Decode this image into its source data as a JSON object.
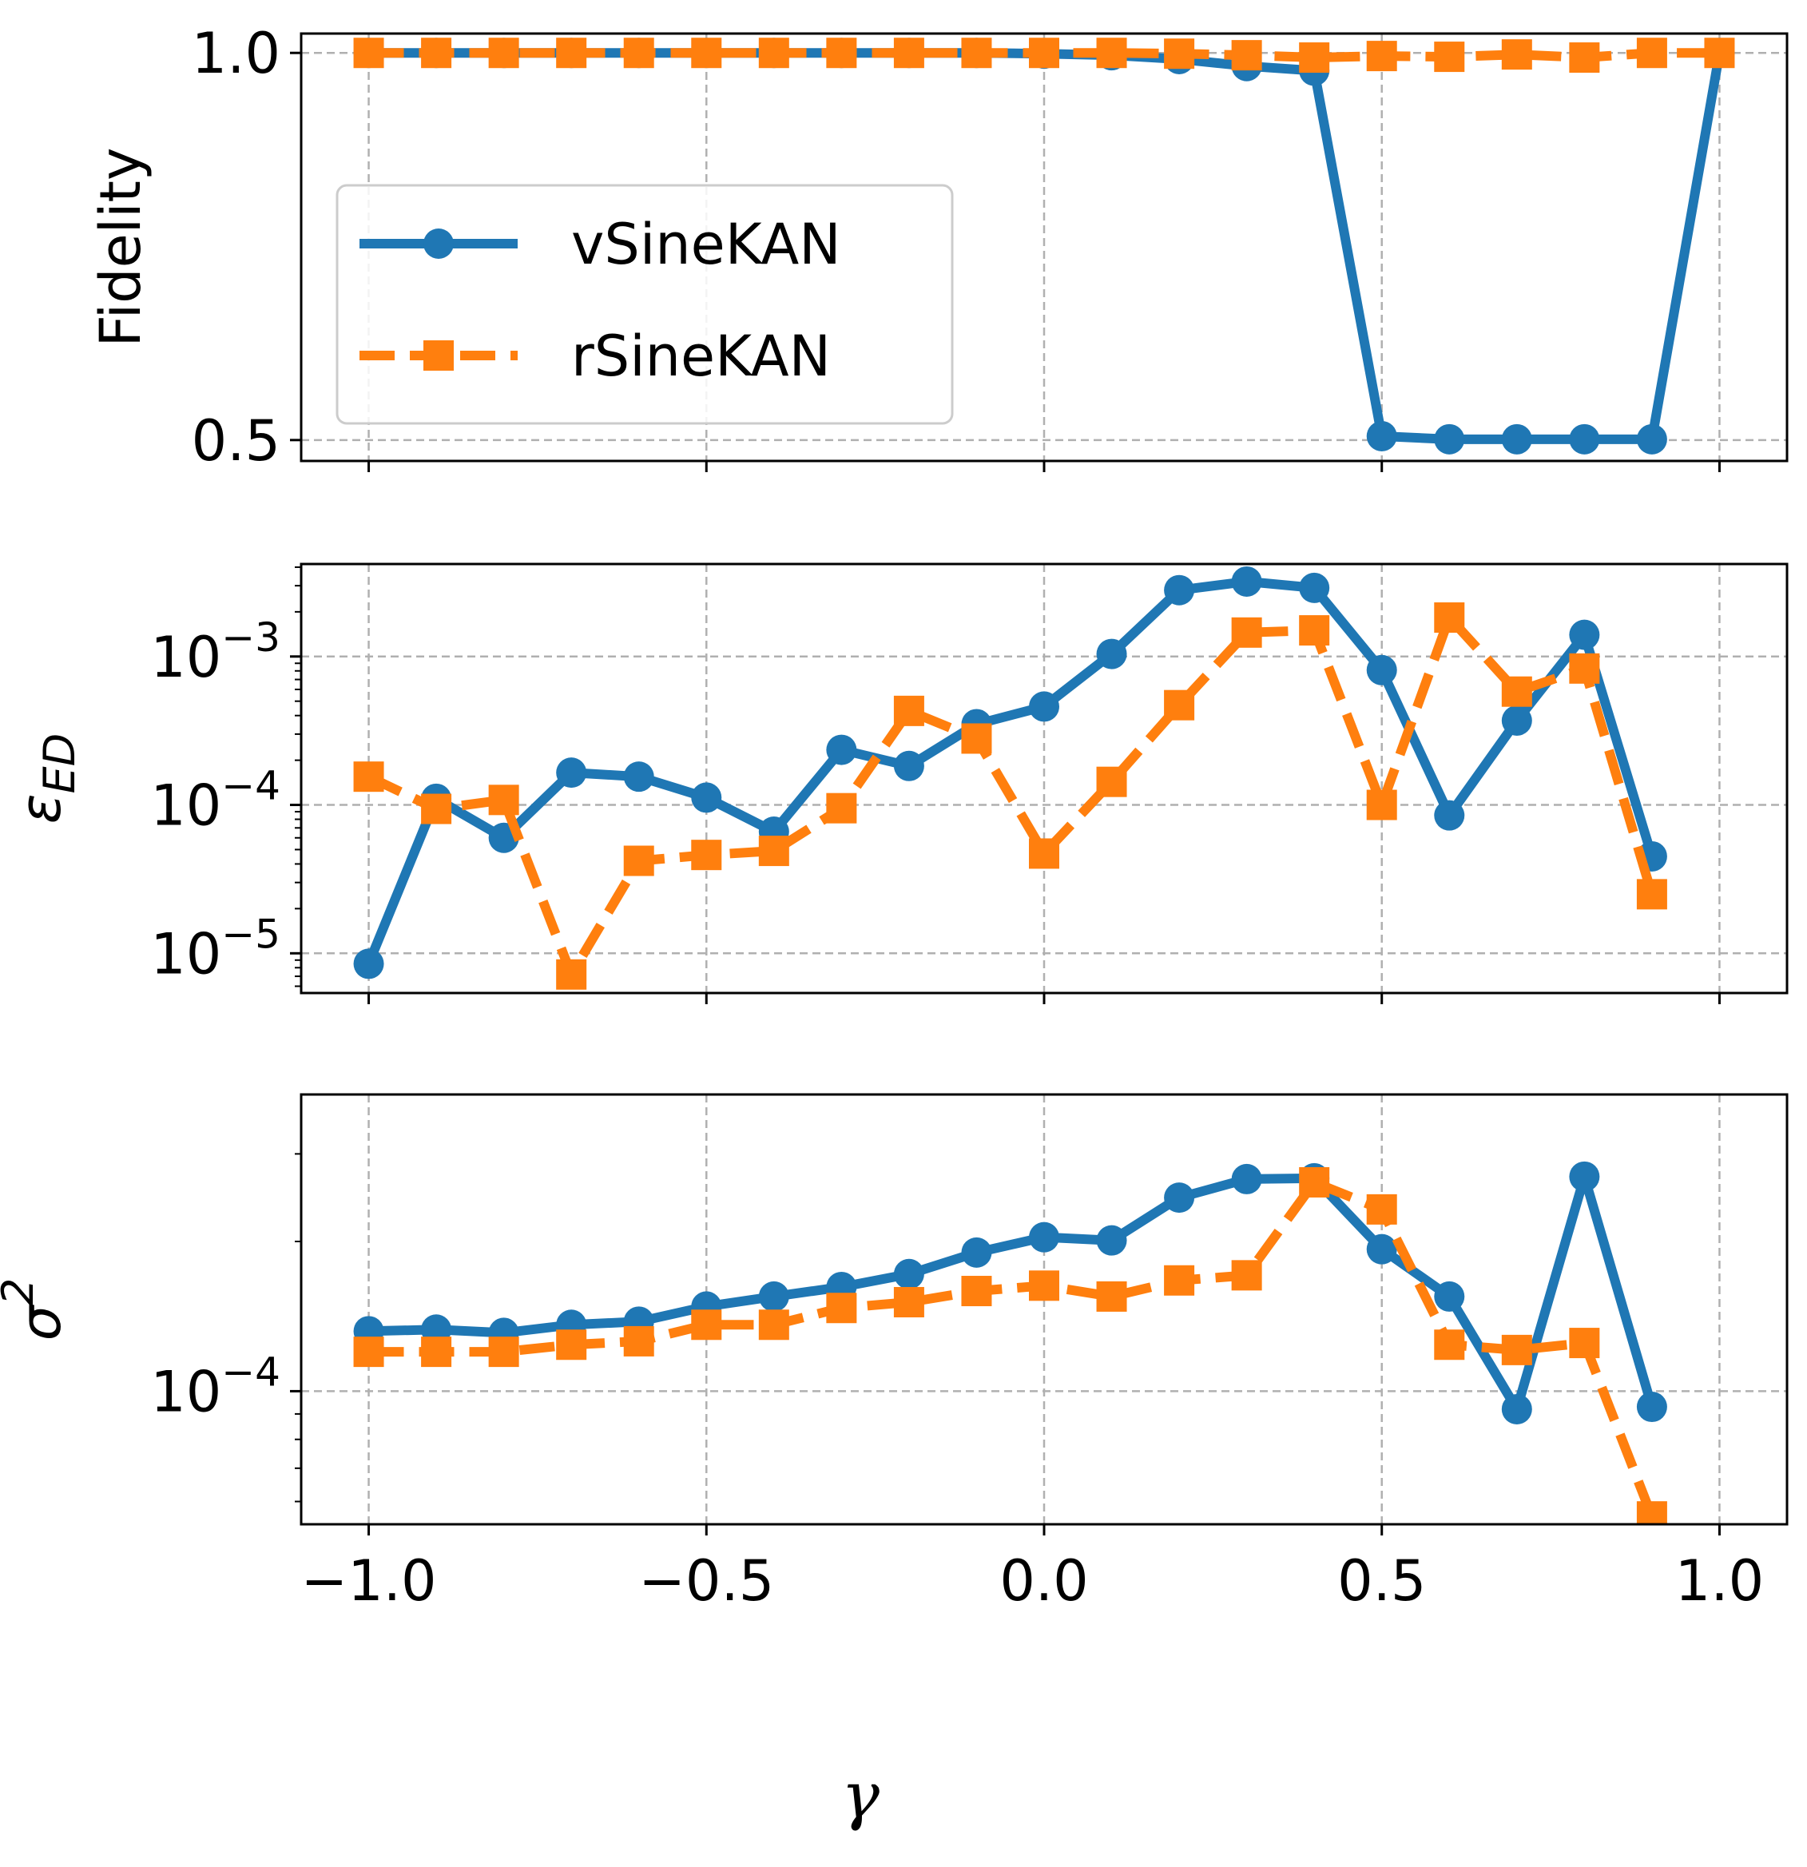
{
  "chart_data": [
    {
      "type": "line",
      "panel": "top",
      "ylabel": "Fidelity",
      "yscale": "linear",
      "ylim": [
        0.473,
        1.025
      ],
      "yticks": [
        {
          "value": 0.5,
          "label": "0.5"
        },
        {
          "value": 1.0,
          "label": "1.0"
        }
      ],
      "grid": true,
      "legend": {
        "position": "center-left",
        "entries": [
          "vSineKAN",
          "rSineKAN"
        ]
      },
      "x": [
        -1.0,
        -0.9,
        -0.8,
        -0.7,
        -0.6,
        -0.5,
        -0.4,
        -0.3,
        -0.2,
        -0.1,
        0.0,
        0.1,
        0.2,
        0.3,
        0.4,
        0.5,
        0.6,
        0.7,
        0.8,
        0.9,
        1.0
      ],
      "series": [
        {
          "name": "vSineKAN",
          "color": "#1f77b4",
          "marker": "circle",
          "linestyle": "solid",
          "values": [
            1.0,
            1.0,
            1.0,
            1.0,
            1.0,
            1.0,
            1.0,
            1.0,
            1.0,
            1.0,
            0.999,
            0.997,
            0.992,
            0.983,
            0.977,
            0.505,
            0.501,
            0.501,
            0.501,
            0.501,
            1.0
          ]
        },
        {
          "name": "rSineKAN",
          "color": "#ff7f0e",
          "marker": "square",
          "linestyle": "dashed",
          "values": [
            1.0,
            1.0,
            1.0,
            1.0,
            1.0,
            1.0,
            1.0,
            1.0,
            1.0,
            1.0,
            1.0,
            1.0,
            0.999,
            0.997,
            0.994,
            0.996,
            0.995,
            0.998,
            0.994,
            1.0,
            1.0
          ]
        }
      ]
    },
    {
      "type": "line",
      "panel": "middle",
      "ylabel": "εED",
      "ylabel_main": "ε",
      "ylabel_sub": "ED",
      "yscale": "log",
      "ylim": [
        5.4e-06,
        0.0042
      ],
      "yticks": [
        {
          "value": 1e-05,
          "base": "10",
          "exp": "−5"
        },
        {
          "value": 0.0001,
          "base": "10",
          "exp": "−4"
        },
        {
          "value": 0.001,
          "base": "10",
          "exp": "−3"
        }
      ],
      "grid": true,
      "x": [
        -1.0,
        -0.9,
        -0.8,
        -0.7,
        -0.6,
        -0.5,
        -0.4,
        -0.3,
        -0.2,
        -0.1,
        0.0,
        0.1,
        0.2,
        0.3,
        0.4,
        0.5,
        0.6,
        0.7,
        0.8,
        0.9
      ],
      "series": [
        {
          "name": "vSineKAN",
          "color": "#1f77b4",
          "marker": "circle",
          "linestyle": "solid",
          "values": [
            8.5e-06,
            0.00011,
            6e-05,
            0.000165,
            0.000155,
            0.000112,
            6.6e-05,
            0.000235,
            0.000183,
            0.00035,
            0.00046,
            0.00104,
            0.0028,
            0.0032,
            0.0029,
            0.00081,
            8.5e-05,
            0.00037,
            0.0014,
            4.5e-05
          ]
        },
        {
          "name": "rSineKAN",
          "color": "#ff7f0e",
          "marker": "square",
          "linestyle": "dashed",
          "values": [
            0.000155,
            9.4e-05,
            0.000108,
            7.2e-06,
            4.2e-05,
            4.6e-05,
            4.9e-05,
            9.5e-05,
            0.00043,
            0.00028,
            4.7e-05,
            0.000143,
            0.00047,
            0.00145,
            0.0015,
            0.0001,
            0.00183,
            0.00058,
            0.00083,
            2.5e-05
          ]
        }
      ]
    },
    {
      "type": "line",
      "panel": "bottom",
      "ylabel": "σ2",
      "ylabel_main": "σ",
      "ylabel_sup": "2",
      "xlabel": "γ",
      "yscale": "log",
      "ylim": [
        5.4e-05,
        0.000395
      ],
      "yticks": [
        {
          "value": 0.0001,
          "base": "10",
          "exp": "−4"
        }
      ],
      "xticks": [
        {
          "value": -1.0,
          "label": "−1.0"
        },
        {
          "value": -0.5,
          "label": "−0.5"
        },
        {
          "value": 0.0,
          "label": "0.0"
        },
        {
          "value": 0.5,
          "label": "0.5"
        },
        {
          "value": 1.0,
          "label": "1.0"
        }
      ],
      "grid": true,
      "x": [
        -1.0,
        -0.9,
        -0.8,
        -0.7,
        -0.6,
        -0.5,
        -0.4,
        -0.3,
        -0.2,
        -0.1,
        0.0,
        0.1,
        0.2,
        0.3,
        0.4,
        0.5,
        0.6,
        0.7,
        0.8,
        0.9
      ],
      "series": [
        {
          "name": "vSineKAN",
          "color": "#1f77b4",
          "marker": "circle",
          "linestyle": "solid",
          "values": [
            0.000132,
            0.000133,
            0.000131,
            0.000136,
            0.000138,
            0.000148,
            0.000155,
            0.000162,
            0.000172,
            0.00019,
            0.000204,
            0.000201,
            0.000245,
            0.000267,
            0.000268,
            0.000193,
            0.000155,
            9.2e-05,
            0.00027,
            9.3e-05
          ]
        },
        {
          "name": "rSineKAN",
          "color": "#ff7f0e",
          "marker": "square",
          "linestyle": "dashed",
          "values": [
            0.00012,
            0.00012,
            0.00012,
            0.000124,
            0.000126,
            0.000136,
            0.000136,
            0.000147,
            0.000151,
            0.000159,
            0.000163,
            0.000155,
            0.000167,
            0.000171,
            0.000263,
            0.000232,
            0.000124,
            0.000121,
            0.000125,
            5.6e-05
          ]
        }
      ]
    }
  ]
}
